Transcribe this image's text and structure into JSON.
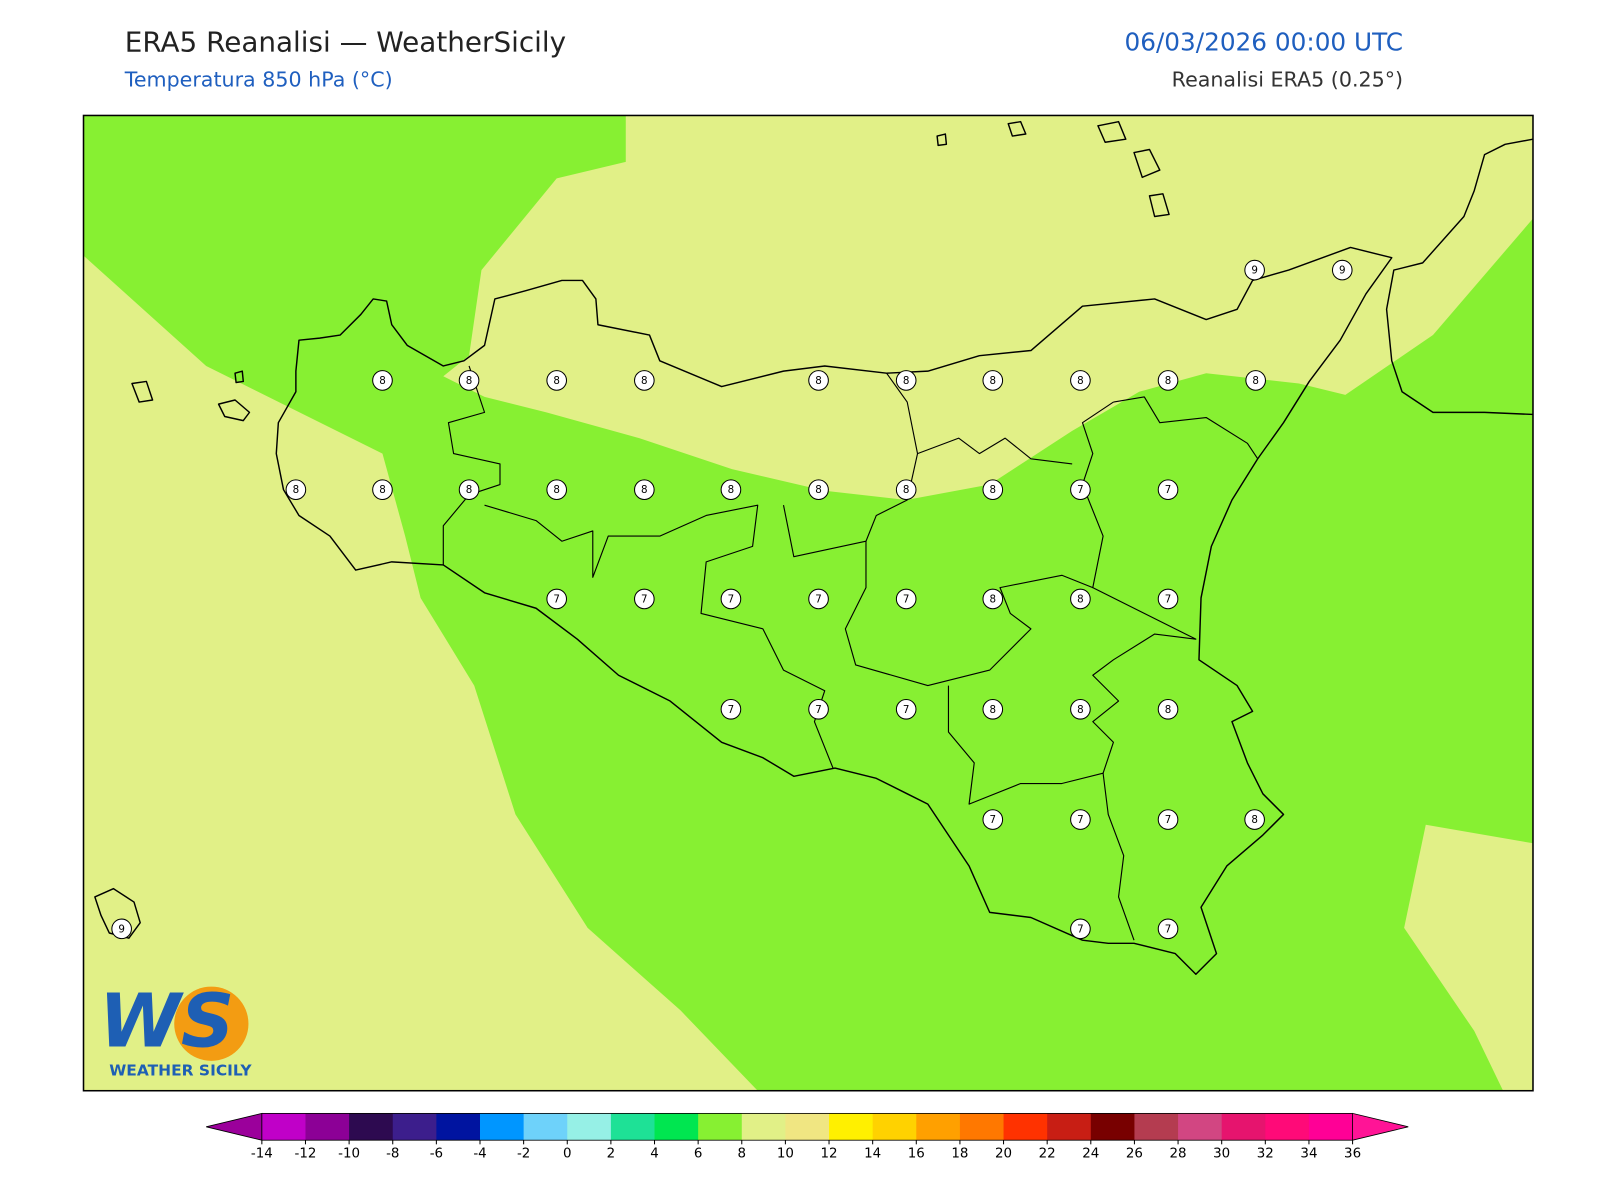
{
  "header": {
    "title": "ERA5 Reanalisi — WeatherSicily",
    "subtitle": "Temperatura 850 hPa (°C)",
    "datetime": "06/03/2026 00:00 UTC",
    "source": "Reanalisi ERA5 (0.25°)"
  },
  "map": {
    "grid_labels": [
      9,
      9,
      8,
      8,
      8,
      8,
      8,
      8,
      8,
      8,
      8,
      8,
      8,
      8,
      8,
      8,
      8,
      8,
      8,
      8,
      8,
      7,
      7,
      7,
      7,
      7,
      7,
      7,
      8,
      8,
      7,
      7,
      7,
      7,
      8,
      8,
      8,
      7,
      7,
      7,
      8,
      9,
      7,
      7
    ]
  },
  "logo": {
    "mark": "WS",
    "text": "WEATHER SICILY"
  },
  "colorbar": {
    "ticks": [
      -14,
      -12,
      -10,
      -8,
      -6,
      -4,
      -2,
      0,
      2,
      4,
      6,
      8,
      10,
      12,
      14,
      16,
      18,
      20,
      22,
      24,
      26,
      28,
      30,
      32,
      34,
      36
    ],
    "colors": [
      "#c000c8",
      "#8c0096",
      "#2d0a50",
      "#3c1e8c",
      "#0014a0",
      "#0096ff",
      "#6ed2fa",
      "#96f0e6",
      "#1ee196",
      "#00e650",
      "#87f032",
      "#e1f087",
      "#f0e682",
      "#fff000",
      "#ffd200",
      "#ffa000",
      "#ff7800",
      "#ff3200",
      "#c81e14",
      "#780000",
      "#b43c50",
      "#d24682",
      "#e6146e",
      "#ff0a78",
      "#ff0096"
    ],
    "extend_min_color": "#9b009b",
    "extend_max_color": "#ff1496"
  }
}
